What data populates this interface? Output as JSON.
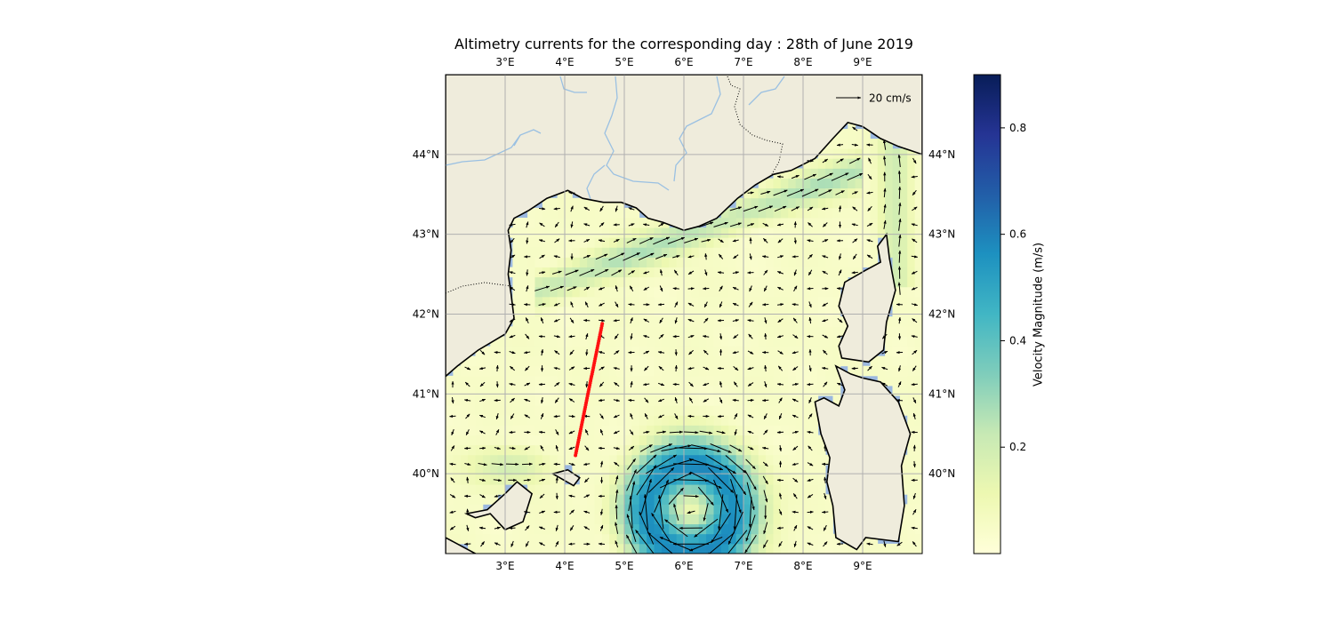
{
  "title": "Altimetry currents for the corresponding day : 28th of June 2019",
  "map": {
    "lon_range": [
      2,
      10
    ],
    "lat_range": [
      39,
      45
    ],
    "lon_ticks": [
      {
        "value": 3,
        "label": "3°E"
      },
      {
        "value": 4,
        "label": "4°E"
      },
      {
        "value": 5,
        "label": "5°E"
      },
      {
        "value": 6,
        "label": "6°E"
      },
      {
        "value": 7,
        "label": "7°E"
      },
      {
        "value": 8,
        "label": "8°E"
      },
      {
        "value": 9,
        "label": "9°E"
      }
    ],
    "lat_ticks": [
      {
        "value": 40,
        "label": "40°N"
      },
      {
        "value": 41,
        "label": "41°N"
      },
      {
        "value": 42,
        "label": "42°N"
      },
      {
        "value": 43,
        "label": "43°N"
      },
      {
        "value": 44,
        "label": "44°N"
      }
    ],
    "gridlines": true,
    "reference_arrow": {
      "label": "20 cm/s",
      "speed": 0.2
    },
    "colors": {
      "land": "#efecdc",
      "ocean": "#9bb8e0",
      "rivers": "#9ac0e2",
      "track": "#ff1111",
      "arrows": "#000000"
    },
    "track": {
      "start": {
        "lon": 4.18,
        "lat": 40.23
      },
      "end": {
        "lon": 4.63,
        "lat": 41.88
      }
    },
    "eddy": {
      "lon": 6.1,
      "lat": 39.55
    },
    "coast_land": [
      [
        [
          2,
          41.22
        ],
        [
          2.2,
          41.35
        ],
        [
          2.55,
          41.55
        ],
        [
          3.0,
          41.75
        ],
        [
          3.15,
          41.95
        ],
        [
          3.1,
          42.25
        ],
        [
          3.05,
          42.5
        ],
        [
          3.1,
          42.8
        ],
        [
          3.05,
          43.05
        ],
        [
          3.15,
          43.2
        ],
        [
          3.4,
          43.3
        ],
        [
          3.7,
          43.45
        ],
        [
          4.05,
          43.55
        ],
        [
          4.3,
          43.45
        ],
        [
          4.65,
          43.4
        ],
        [
          4.95,
          43.4
        ],
        [
          5.2,
          43.33
        ],
        [
          5.4,
          43.2
        ],
        [
          5.65,
          43.15
        ],
        [
          6.0,
          43.05
        ],
        [
          6.25,
          43.1
        ],
        [
          6.55,
          43.2
        ],
        [
          6.9,
          43.45
        ],
        [
          7.2,
          43.62
        ],
        [
          7.5,
          43.75
        ],
        [
          7.8,
          43.8
        ],
        [
          8.2,
          43.95
        ],
        [
          8.5,
          44.2
        ],
        [
          8.75,
          44.4
        ],
        [
          9.0,
          44.35
        ],
        [
          9.3,
          44.2
        ],
        [
          9.6,
          44.1
        ],
        [
          9.8,
          44.05
        ],
        [
          10,
          44.0
        ],
        [
          10,
          45
        ],
        [
          2,
          45
        ]
      ],
      [
        [
          8.55,
          41.35
        ],
        [
          8.7,
          41.05
        ],
        [
          8.6,
          40.85
        ],
        [
          8.35,
          40.95
        ],
        [
          8.2,
          40.9
        ],
        [
          8.3,
          40.5
        ],
        [
          8.45,
          40.2
        ],
        [
          8.4,
          39.9
        ],
        [
          8.5,
          39.6
        ],
        [
          8.55,
          39.2
        ],
        [
          8.9,
          39.05
        ],
        [
          9.05,
          39.2
        ],
        [
          9.6,
          39.15
        ],
        [
          9.7,
          39.6
        ],
        [
          9.65,
          40.1
        ],
        [
          9.8,
          40.5
        ],
        [
          9.6,
          40.9
        ],
        [
          9.3,
          41.15
        ],
        [
          9.0,
          41.2
        ],
        [
          8.8,
          41.25
        ]
      ],
      [
        [
          8.65,
          41.45
        ],
        [
          9.1,
          41.4
        ],
        [
          9.35,
          41.55
        ],
        [
          9.4,
          41.9
        ],
        [
          9.55,
          42.3
        ],
        [
          9.45,
          42.7
        ],
        [
          9.4,
          43.0
        ],
        [
          9.25,
          42.85
        ],
        [
          9.3,
          42.65
        ],
        [
          9.05,
          42.55
        ],
        [
          8.7,
          42.4
        ],
        [
          8.6,
          42.1
        ],
        [
          8.75,
          41.85
        ],
        [
          8.6,
          41.6
        ]
      ],
      [
        [
          2.35,
          39.5
        ],
        [
          2.7,
          39.55
        ],
        [
          3.0,
          39.75
        ],
        [
          3.2,
          39.9
        ],
        [
          3.45,
          39.75
        ],
        [
          3.3,
          39.4
        ],
        [
          3.0,
          39.3
        ],
        [
          2.75,
          39.5
        ],
        [
          2.5,
          39.45
        ]
      ],
      [
        [
          3.8,
          40.0
        ],
        [
          4.15,
          39.85
        ],
        [
          4.25,
          39.95
        ],
        [
          4.05,
          40.05
        ]
      ],
      [
        [
          2,
          38.9
        ],
        [
          2,
          39.2
        ],
        [
          2.5,
          39.0
        ],
        [
          2.6,
          38.9
        ]
      ]
    ]
  },
  "colorbar": {
    "label": "Velocity Magnitude (m/s)",
    "range": [
      0.0,
      0.9
    ],
    "ticks": [
      {
        "value": 0.2,
        "label": "0.2"
      },
      {
        "value": 0.4,
        "label": "0.4"
      },
      {
        "value": 0.6,
        "label": "0.6"
      },
      {
        "value": 0.8,
        "label": "0.8"
      }
    ],
    "stops": [
      "#ffffd9",
      "#edf8b1",
      "#c7e9b4",
      "#7fcdbb",
      "#41b6c4",
      "#1d91c0",
      "#225ea8",
      "#253494",
      "#081d58"
    ]
  }
}
